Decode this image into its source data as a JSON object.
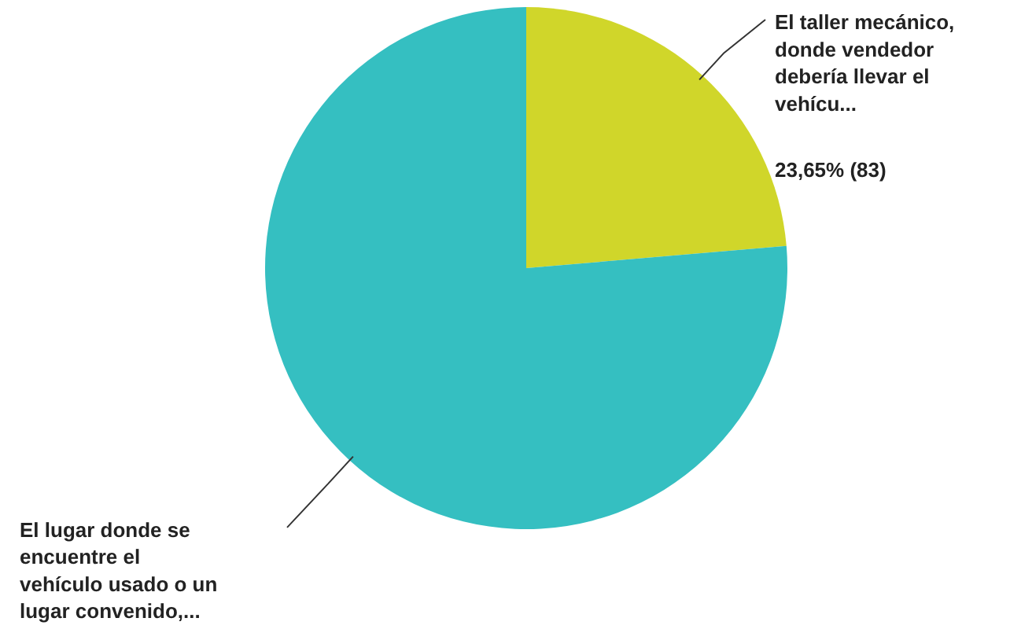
{
  "chart_data": {
    "type": "pie",
    "categories": [
      "El taller mecánico, donde vendedor debería llevar el vehícu...",
      "El lugar donde se encuentre el vehículo usado o un lugar convenido,..."
    ],
    "values": [
      23.65,
      76.35
    ],
    "colors": [
      "#d0d62a",
      "#35bfc1"
    ],
    "value_labels": [
      "23,65% (83)",
      null
    ]
  }
}
